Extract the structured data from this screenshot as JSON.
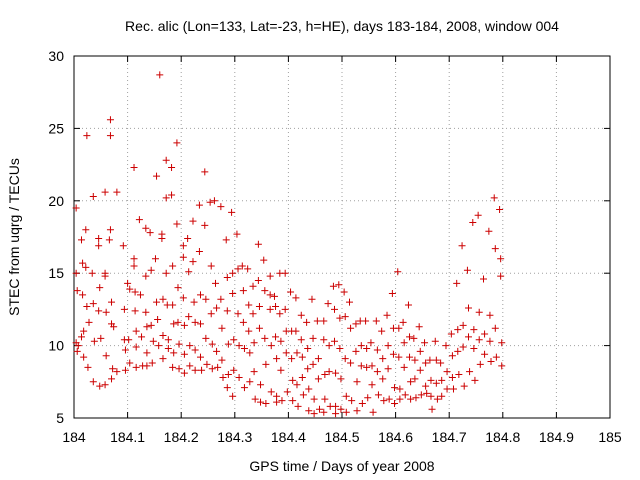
{
  "chart_data": {
    "type": "scatter",
    "title": "Rec. alic (Lon=133, Lat=-23, h=HE), days 183-184, 2008, window 004",
    "xlabel": "GPS time / Days of year 2008",
    "ylabel": "STEC from uqrg / TECUs",
    "xlim": [
      184,
      185
    ],
    "ylim": [
      5,
      30
    ],
    "xticks": [
      184,
      184.1,
      184.2,
      184.3,
      184.4,
      184.5,
      184.6,
      184.7,
      184.8,
      184.9,
      185
    ],
    "xtick_labels": [
      "184",
      "184.1",
      "184.2",
      "184.3",
      "184.4",
      "184.5",
      "184.6",
      "184.7",
      "184.8",
      "184.9",
      "185"
    ],
    "yticks": [
      5,
      10,
      15,
      20,
      25,
      30
    ],
    "ytick_labels": [
      "5",
      "10",
      "15",
      "20",
      "25",
      "30"
    ],
    "grid": true,
    "marker": "plus",
    "color": "#cc0000",
    "points": [
      [
        184.004,
        19.5
      ],
      [
        184.004,
        15.0
      ],
      [
        184.006,
        13.8
      ],
      [
        184.004,
        10.2
      ],
      [
        184.006,
        9.6
      ],
      [
        184.008,
        10.0
      ],
      [
        184.014,
        17.3
      ],
      [
        184.016,
        15.7
      ],
      [
        184.016,
        13.5
      ],
      [
        184.018,
        11.0
      ],
      [
        184.014,
        10.6
      ],
      [
        184.018,
        9.2
      ],
      [
        184.022,
        18.0
      ],
      [
        184.022,
        15.4
      ],
      [
        184.024,
        12.7
      ],
      [
        184.028,
        11.6
      ],
      [
        184.026,
        8.5
      ],
      [
        184.024,
        24.5
      ],
      [
        184.036,
        20.3
      ],
      [
        184.034,
        15.0
      ],
      [
        184.036,
        12.9
      ],
      [
        184.038,
        10.3
      ],
      [
        184.036,
        7.5
      ],
      [
        184.046,
        17.4
      ],
      [
        184.046,
        16.9
      ],
      [
        184.048,
        14.0
      ],
      [
        184.046,
        12.4
      ],
      [
        184.05,
        10.5
      ],
      [
        184.048,
        7.2
      ],
      [
        184.058,
        20.6
      ],
      [
        184.058,
        15.0
      ],
      [
        184.058,
        14.8
      ],
      [
        184.06,
        12.3
      ],
      [
        184.06,
        9.3
      ],
      [
        184.058,
        7.3
      ],
      [
        184.068,
        25.6
      ],
      [
        184.068,
        24.5
      ],
      [
        184.068,
        18.0
      ],
      [
        184.066,
        17.3
      ],
      [
        184.07,
        13.0
      ],
      [
        184.07,
        11.5
      ],
      [
        184.074,
        11.3
      ],
      [
        184.072,
        8.4
      ],
      [
        184.07,
        7.7
      ],
      [
        184.08,
        20.6
      ],
      [
        184.08,
        8.2
      ],
      [
        184.092,
        16.9
      ],
      [
        184.094,
        12.5
      ],
      [
        184.094,
        10.4
      ],
      [
        184.096,
        9.7
      ],
      [
        184.096,
        8.3
      ],
      [
        184.1,
        14.3
      ],
      [
        184.104,
        13.9
      ],
      [
        184.102,
        10.4
      ],
      [
        184.104,
        8.8
      ],
      [
        184.112,
        22.3
      ],
      [
        184.112,
        16.0
      ],
      [
        184.112,
        15.5
      ],
      [
        184.114,
        13.7
      ],
      [
        184.114,
        12.4
      ],
      [
        184.116,
        11.0
      ],
      [
        184.116,
        9.9
      ],
      [
        184.116,
        8.5
      ],
      [
        184.122,
        18.7
      ],
      [
        184.124,
        13.5
      ],
      [
        184.126,
        10.6
      ],
      [
        184.128,
        8.6
      ],
      [
        184.134,
        18.1
      ],
      [
        184.134,
        14.8
      ],
      [
        184.134,
        12.3
      ],
      [
        184.136,
        11.3
      ],
      [
        184.136,
        9.5
      ],
      [
        184.136,
        8.6
      ],
      [
        184.142,
        17.8
      ],
      [
        184.144,
        15.2
      ],
      [
        184.144,
        11.4
      ],
      [
        184.148,
        10.3
      ],
      [
        184.146,
        8.8
      ],
      [
        184.154,
        21.7
      ],
      [
        184.152,
        16.0
      ],
      [
        184.154,
        13.0
      ],
      [
        184.156,
        11.8
      ],
      [
        184.158,
        10.0
      ],
      [
        184.16,
        28.7
      ],
      [
        184.164,
        17.7
      ],
      [
        184.164,
        17.4
      ],
      [
        184.166,
        13.2
      ],
      [
        184.166,
        10.7
      ],
      [
        184.166,
        9.1
      ],
      [
        184.172,
        22.8
      ],
      [
        184.172,
        20.2
      ],
      [
        184.172,
        15.0
      ],
      [
        184.174,
        12.8
      ],
      [
        184.176,
        10.4
      ],
      [
        184.176,
        9.8
      ],
      [
        184.182,
        22.3
      ],
      [
        184.182,
        20.4
      ],
      [
        184.184,
        15.5
      ],
      [
        184.184,
        12.8
      ],
      [
        184.186,
        11.5
      ],
      [
        184.186,
        9.5
      ],
      [
        184.184,
        8.5
      ],
      [
        184.192,
        24.0
      ],
      [
        184.192,
        18.4
      ],
      [
        184.194,
        14.0
      ],
      [
        184.194,
        11.6
      ],
      [
        184.196,
        10.1
      ],
      [
        184.196,
        8.4
      ],
      [
        184.204,
        16.9
      ],
      [
        184.204,
        16.1
      ],
      [
        184.204,
        13.3
      ],
      [
        184.206,
        11.4
      ],
      [
        184.206,
        9.4
      ],
      [
        184.206,
        8.1
      ],
      [
        184.212,
        17.4
      ],
      [
        184.214,
        15.1
      ],
      [
        184.214,
        12.0
      ],
      [
        184.216,
        10.0
      ],
      [
        184.216,
        8.6
      ],
      [
        184.222,
        18.6
      ],
      [
        184.222,
        15.8
      ],
      [
        184.224,
        13.0
      ],
      [
        184.226,
        11.6
      ],
      [
        184.226,
        9.7
      ],
      [
        184.226,
        8.3
      ],
      [
        184.234,
        19.7
      ],
      [
        184.234,
        16.5
      ],
      [
        184.236,
        13.5
      ],
      [
        184.236,
        11.5
      ],
      [
        184.236,
        9.2
      ],
      [
        184.238,
        8.3
      ],
      [
        184.244,
        22.0
      ],
      [
        184.244,
        18.3
      ],
      [
        184.246,
        13.2
      ],
      [
        184.246,
        10.5
      ],
      [
        184.248,
        8.7
      ],
      [
        184.254,
        19.9
      ],
      [
        184.256,
        15.5
      ],
      [
        184.256,
        12.2
      ],
      [
        184.258,
        10.1
      ],
      [
        184.258,
        8.4
      ],
      [
        184.262,
        20.0
      ],
      [
        184.264,
        14.3
      ],
      [
        184.266,
        12.6
      ],
      [
        184.266,
        9.6
      ],
      [
        184.268,
        8.5
      ],
      [
        184.274,
        19.6
      ],
      [
        184.274,
        13.2
      ],
      [
        184.276,
        11.2
      ],
      [
        184.276,
        9.0
      ],
      [
        184.278,
        7.8
      ],
      [
        184.284,
        17.3
      ],
      [
        184.286,
        14.7
      ],
      [
        184.286,
        12.4
      ],
      [
        184.288,
        10.1
      ],
      [
        184.288,
        8.0
      ],
      [
        184.286,
        7.1
      ],
      [
        184.294,
        19.2
      ],
      [
        184.296,
        15.0
      ],
      [
        184.296,
        13.6
      ],
      [
        184.298,
        10.4
      ],
      [
        184.298,
        8.3
      ],
      [
        184.296,
        6.5
      ],
      [
        184.304,
        17.7
      ],
      [
        184.306,
        15.3
      ],
      [
        184.306,
        12.2
      ],
      [
        184.308,
        10.0
      ],
      [
        184.308,
        7.8
      ],
      [
        184.314,
        15.5
      ],
      [
        184.316,
        13.8
      ],
      [
        184.316,
        11.6
      ],
      [
        184.318,
        9.8
      ],
      [
        184.318,
        7.1
      ],
      [
        184.324,
        15.3
      ],
      [
        184.326,
        12.8
      ],
      [
        184.326,
        11.0
      ],
      [
        184.328,
        9.5
      ],
      [
        184.328,
        7.5
      ],
      [
        184.334,
        14.1
      ],
      [
        184.334,
        12.2
      ],
      [
        184.336,
        10.2
      ],
      [
        184.336,
        8.2
      ],
      [
        184.338,
        6.3
      ],
      [
        184.344,
        17.0
      ],
      [
        184.344,
        14.5
      ],
      [
        184.346,
        12.7
      ],
      [
        184.346,
        11.2
      ],
      [
        184.348,
        7.3
      ],
      [
        184.348,
        6.1
      ],
      [
        184.354,
        15.9
      ],
      [
        184.356,
        13.8
      ],
      [
        184.356,
        10.5
      ],
      [
        184.358,
        8.7
      ],
      [
        184.358,
        6.0
      ],
      [
        184.366,
        14.8
      ],
      [
        184.366,
        13.5
      ],
      [
        184.366,
        12.5
      ],
      [
        184.368,
        10.0
      ],
      [
        184.368,
        6.8
      ],
      [
        184.374,
        13.4
      ],
      [
        184.376,
        12.7
      ],
      [
        184.376,
        10.6
      ],
      [
        184.378,
        9.1
      ],
      [
        184.378,
        6.5
      ],
      [
        184.378,
        6.1
      ],
      [
        184.384,
        15.0
      ],
      [
        184.384,
        12.2
      ],
      [
        184.386,
        10.3
      ],
      [
        184.386,
        8.3
      ],
      [
        184.388,
        6.2
      ],
      [
        184.394,
        15.0
      ],
      [
        184.394,
        12.5
      ],
      [
        184.396,
        11.0
      ],
      [
        184.396,
        9.5
      ],
      [
        184.398,
        6.8
      ],
      [
        184.404,
        13.7
      ],
      [
        184.406,
        11.0
      ],
      [
        184.406,
        9.1
      ],
      [
        184.408,
        7.6
      ],
      [
        184.408,
        6.2
      ],
      [
        184.414,
        13.3
      ],
      [
        184.414,
        11.0
      ],
      [
        184.416,
        9.5
      ],
      [
        184.416,
        7.3
      ],
      [
        184.418,
        5.8
      ],
      [
        184.424,
        12.1
      ],
      [
        184.424,
        10.4
      ],
      [
        184.426,
        9.2
      ],
      [
        184.426,
        7.8
      ],
      [
        184.428,
        6.6
      ],
      [
        184.434,
        11.6
      ],
      [
        184.436,
        9.8
      ],
      [
        184.436,
        8.4
      ],
      [
        184.438,
        7.0
      ],
      [
        184.438,
        5.5
      ],
      [
        184.444,
        13.2
      ],
      [
        184.446,
        10.5
      ],
      [
        184.446,
        8.7
      ],
      [
        184.448,
        6.3
      ],
      [
        184.448,
        5.3
      ],
      [
        184.454,
        11.7
      ],
      [
        184.456,
        9.1
      ],
      [
        184.456,
        7.7
      ],
      [
        184.458,
        5.6
      ],
      [
        184.466,
        11.7
      ],
      [
        184.466,
        10.4
      ],
      [
        184.468,
        8.0
      ],
      [
        184.468,
        6.3
      ],
      [
        184.466,
        5.4
      ],
      [
        184.474,
        12.9
      ],
      [
        184.476,
        10.0
      ],
      [
        184.476,
        8.2
      ],
      [
        184.478,
        5.8
      ],
      [
        184.484,
        14.1
      ],
      [
        184.486,
        12.5
      ],
      [
        184.486,
        10.3
      ],
      [
        184.488,
        8.1
      ],
      [
        184.488,
        5.8
      ],
      [
        184.488,
        5.3
      ],
      [
        184.494,
        14.2
      ],
      [
        184.496,
        11.9
      ],
      [
        184.496,
        9.8
      ],
      [
        184.498,
        7.7
      ],
      [
        184.498,
        5.6
      ],
      [
        184.504,
        13.7
      ],
      [
        184.506,
        12.0
      ],
      [
        184.506,
        9.1
      ],
      [
        184.508,
        6.5
      ],
      [
        184.508,
        5.4
      ],
      [
        184.514,
        13.0
      ],
      [
        184.516,
        11.2
      ],
      [
        184.516,
        8.8
      ],
      [
        184.518,
        6.2
      ],
      [
        184.526,
        11.5
      ],
      [
        184.526,
        9.6
      ],
      [
        184.528,
        7.5
      ],
      [
        184.528,
        5.5
      ],
      [
        184.534,
        11.7
      ],
      [
        184.536,
        10.0
      ],
      [
        184.536,
        8.6
      ],
      [
        184.538,
        6.0
      ],
      [
        184.544,
        11.7
      ],
      [
        184.546,
        9.8
      ],
      [
        184.546,
        8.5
      ],
      [
        184.548,
        6.4
      ],
      [
        184.554,
        10.2
      ],
      [
        184.556,
        8.6
      ],
      [
        184.556,
        7.3
      ],
      [
        184.558,
        5.4
      ],
      [
        184.564,
        11.7
      ],
      [
        184.566,
        9.7
      ],
      [
        184.566,
        8.2
      ],
      [
        184.568,
        6.6
      ],
      [
        184.574,
        11.0
      ],
      [
        184.576,
        9.1
      ],
      [
        184.576,
        7.7
      ],
      [
        184.578,
        6.2
      ],
      [
        184.584,
        12.1
      ],
      [
        184.586,
        10.0
      ],
      [
        184.586,
        8.4
      ],
      [
        184.588,
        6.3
      ],
      [
        184.594,
        13.6
      ],
      [
        184.596,
        11.2
      ],
      [
        184.596,
        9.4
      ],
      [
        184.598,
        7.1
      ],
      [
        184.598,
        6.0
      ],
      [
        184.604,
        15.1
      ],
      [
        184.606,
        11.2
      ],
      [
        184.606,
        9.2
      ],
      [
        184.608,
        7.0
      ],
      [
        184.608,
        6.3
      ],
      [
        184.614,
        11.6
      ],
      [
        184.616,
        10.2
      ],
      [
        184.616,
        8.5
      ],
      [
        184.618,
        6.6
      ],
      [
        184.624,
        12.8
      ],
      [
        184.626,
        10.6
      ],
      [
        184.626,
        9.2
      ],
      [
        184.628,
        7.5
      ],
      [
        184.628,
        6.3
      ],
      [
        184.634,
        10.5
      ],
      [
        184.636,
        9.0
      ],
      [
        184.636,
        7.7
      ],
      [
        184.638,
        6.4
      ],
      [
        184.644,
        11.3
      ],
      [
        184.646,
        9.6
      ],
      [
        184.646,
        8.3
      ],
      [
        184.648,
        6.6
      ],
      [
        184.654,
        10.2
      ],
      [
        184.656,
        8.8
      ],
      [
        184.656,
        7.2
      ],
      [
        184.658,
        6.7
      ],
      [
        184.664,
        9.0
      ],
      [
        184.666,
        7.6
      ],
      [
        184.666,
        6.5
      ],
      [
        184.668,
        5.6
      ],
      [
        184.674,
        10.3
      ],
      [
        184.676,
        9.0
      ],
      [
        184.676,
        7.4
      ],
      [
        184.678,
        6.3
      ],
      [
        184.684,
        8.8
      ],
      [
        184.686,
        7.6
      ],
      [
        184.686,
        6.5
      ],
      [
        184.694,
        10.0
      ],
      [
        184.696,
        8.2
      ],
      [
        184.696,
        7.0
      ],
      [
        184.704,
        10.8
      ],
      [
        184.706,
        9.3
      ],
      [
        184.706,
        7.8
      ],
      [
        184.708,
        7.0
      ],
      [
        184.714,
        14.3
      ],
      [
        184.716,
        11.1
      ],
      [
        184.716,
        9.6
      ],
      [
        184.718,
        8.0
      ],
      [
        184.724,
        16.9
      ],
      [
        184.726,
        11.4
      ],
      [
        184.726,
        9.9
      ],
      [
        184.728,
        7.2
      ],
      [
        184.734,
        15.2
      ],
      [
        184.736,
        12.6
      ],
      [
        184.736,
        10.6
      ],
      [
        184.738,
        8.2
      ],
      [
        184.744,
        18.5
      ],
      [
        184.746,
        11.1
      ],
      [
        184.746,
        9.8
      ],
      [
        184.748,
        7.6
      ],
      [
        184.754,
        19.0
      ],
      [
        184.756,
        12.3
      ],
      [
        184.756,
        10.4
      ],
      [
        184.758,
        8.7
      ],
      [
        184.764,
        14.6
      ],
      [
        184.766,
        10.8
      ],
      [
        184.766,
        9.4
      ],
      [
        184.774,
        17.9
      ],
      [
        184.776,
        12.1
      ],
      [
        184.776,
        10.3
      ],
      [
        184.778,
        8.9
      ],
      [
        184.784,
        20.2
      ],
      [
        184.786,
        16.7
      ],
      [
        184.786,
        11.2
      ],
      [
        184.788,
        9.2
      ],
      [
        184.794,
        19.4
      ],
      [
        184.796,
        16.0
      ],
      [
        184.796,
        14.8
      ],
      [
        184.798,
        10.2
      ],
      [
        184.798,
        8.6
      ]
    ]
  }
}
